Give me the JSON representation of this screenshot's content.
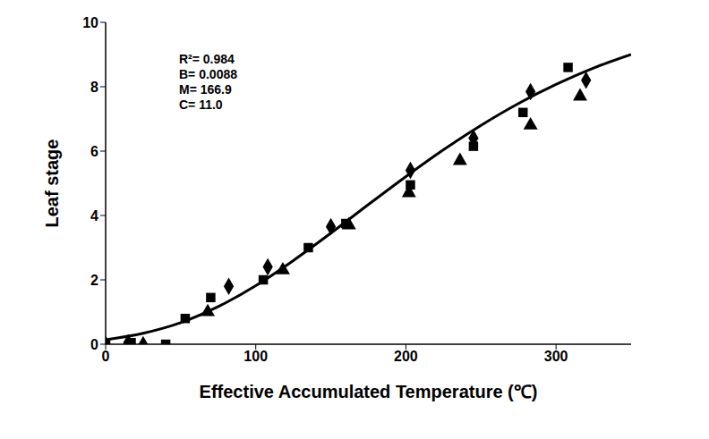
{
  "chart_data": {
    "type": "scatter",
    "x_label": "Effective Accumulated Temperature (℃)",
    "y_label": "Leaf stage",
    "annotations": [
      "R²= 0.984",
      "B= 0.0088",
      "M= 166.9",
      "C= 11.0"
    ],
    "xlim": [
      0,
      350
    ],
    "xticks": [
      0,
      100,
      200,
      300
    ],
    "ylim": [
      0,
      10
    ],
    "yticks": [
      0,
      2,
      4,
      6,
      8,
      10
    ],
    "grid": false,
    "series": [
      {
        "type": "scatter",
        "marker": "diamond",
        "color": "#000000",
        "x": [
          0,
          15,
          82,
          108,
          150,
          203,
          245,
          283,
          320
        ],
        "values": [
          0,
          0.05,
          1.8,
          2.4,
          3.65,
          5.4,
          6.4,
          7.85,
          8.2
        ]
      },
      {
        "type": "scatter",
        "marker": "square",
        "color": "#000000",
        "x": [
          0,
          17,
          40,
          53,
          70,
          105,
          135,
          160,
          203,
          245,
          278,
          308
        ],
        "values": [
          0,
          0.05,
          0,
          0.8,
          1.45,
          2.0,
          3.0,
          3.75,
          4.95,
          6.15,
          7.2,
          8.6
        ]
      },
      {
        "type": "scatter",
        "marker": "triangle",
        "color": "#000000",
        "x": [
          25,
          68,
          118,
          162,
          202,
          236,
          283,
          316
        ],
        "values": [
          0,
          1.0,
          2.3,
          3.7,
          4.7,
          5.7,
          6.8,
          7.7
        ]
      },
      {
        "type": "line",
        "marker": "none",
        "line_style": "solid",
        "color": "#000000",
        "x": [
          0,
          25,
          50,
          75,
          100,
          125,
          150,
          175,
          200,
          225,
          250,
          275,
          300,
          325,
          350
        ],
        "values": [
          0.14,
          0.34,
          0.67,
          1.17,
          1.82,
          2.6,
          3.45,
          4.34,
          5.21,
          6.04,
          6.8,
          7.48,
          8.07,
          8.58,
          9.0
        ]
      }
    ]
  }
}
